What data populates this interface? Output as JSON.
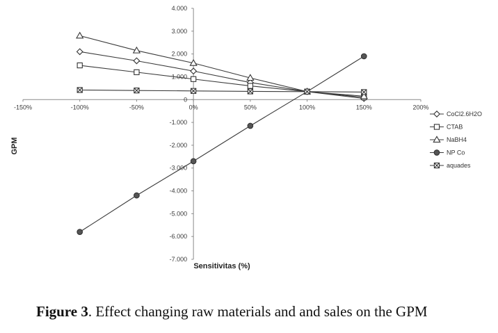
{
  "chart_data": {
    "type": "line",
    "xlabel": "Sensitivitas (%)",
    "ylabel": "GPM",
    "xlim": [
      -150,
      200
    ],
    "ylim": [
      -7,
      4
    ],
    "x_ticks": [
      "-150%",
      "-100%",
      "-50%",
      "0%",
      "50%",
      "100%",
      "150%",
      "200%"
    ],
    "y_ticks": [
      "4.000",
      "3.000",
      "2.000",
      "1.000",
      "0",
      "-1.000",
      "-2.000",
      "-3.000",
      "-4.000",
      "-5.000",
      "-6.000",
      "-7.000"
    ],
    "x": [
      -100,
      -50,
      0,
      50,
      100,
      150
    ],
    "series": [
      {
        "name": "CoCl2.6H2O",
        "marker": "diamond",
        "values": [
          2.1,
          1.7,
          1.25,
          0.75,
          0.35,
          0.05
        ]
      },
      {
        "name": "CTAB",
        "marker": "square",
        "values": [
          1.5,
          1.2,
          0.9,
          0.6,
          0.35,
          0.1
        ]
      },
      {
        "name": "NaBH4",
        "marker": "triangle",
        "values": [
          2.8,
          2.15,
          1.6,
          0.95,
          0.35,
          0.15
        ]
      },
      {
        "name": "NP Co",
        "marker": "filled-circle",
        "values": [
          -5.8,
          -4.2,
          -2.7,
          -1.15,
          0.35,
          1.9
        ]
      },
      {
        "name": "aquades",
        "marker": "cross-square",
        "values": [
          0.42,
          0.4,
          0.38,
          0.36,
          0.35,
          0.33
        ]
      }
    ],
    "grid": false,
    "legend_position": "right"
  },
  "caption": {
    "label": "Figure 3",
    "text": ". Effect changing raw materials and and sales on the GPM"
  }
}
